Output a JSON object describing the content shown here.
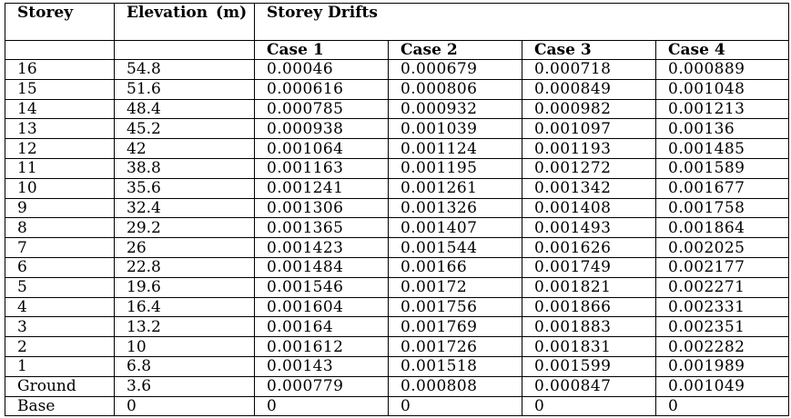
{
  "table": {
    "headers": {
      "storey": "Storey",
      "elevation": "Elevation (m)",
      "drifts_group": "Storey Drifts",
      "cases": [
        "Case 1",
        "Case 2",
        "Case 3",
        "Case 4"
      ]
    },
    "rows": [
      {
        "storey": "16",
        "elevation": "54.8",
        "case1": "0.00046",
        "case2": "0.000679",
        "case3": "0.000718",
        "case4": "0.000889"
      },
      {
        "storey": "15",
        "elevation": "51.6",
        "case1": "0.000616",
        "case2": "0.000806",
        "case3": "0.000849",
        "case4": "0.001048"
      },
      {
        "storey": "14",
        "elevation": "48.4",
        "case1": "0.000785",
        "case2": "0.000932",
        "case3": "0.000982",
        "case4": "0.001213"
      },
      {
        "storey": "13",
        "elevation": "45.2",
        "case1": "0.000938",
        "case2": "0.001039",
        "case3": "0.001097",
        "case4": "0.00136"
      },
      {
        "storey": "12",
        "elevation": "42",
        "case1": "0.001064",
        "case2": "0.001124",
        "case3": "0.001193",
        "case4": "0.001485"
      },
      {
        "storey": "11",
        "elevation": "38.8",
        "case1": "0.001163",
        "case2": "0.001195",
        "case3": "0.001272",
        "case4": "0.001589"
      },
      {
        "storey": "10",
        "elevation": "35.6",
        "case1": "0.001241",
        "case2": "0.001261",
        "case3": "0.001342",
        "case4": "0.001677"
      },
      {
        "storey": "9",
        "elevation": "32.4",
        "case1": "0.001306",
        "case2": "0.001326",
        "case3": "0.001408",
        "case4": "0.001758"
      },
      {
        "storey": "8",
        "elevation": "29.2",
        "case1": "0.001365",
        "case2": "0.001407",
        "case3": "0.001493",
        "case4": "0.001864"
      },
      {
        "storey": "7",
        "elevation": "26",
        "case1": "0.001423",
        "case2": "0.001544",
        "case3": "0.001626",
        "case4": "0.002025"
      },
      {
        "storey": "6",
        "elevation": "22.8",
        "case1": "0.001484",
        "case2": "0.00166",
        "case3": "0.001749",
        "case4": "0.002177"
      },
      {
        "storey": "5",
        "elevation": "19.6",
        "case1": "0.001546",
        "case2": "0.00172",
        "case3": "0.001821",
        "case4": "0.002271"
      },
      {
        "storey": "4",
        "elevation": "16.4",
        "case1": "0.001604",
        "case2": "0.001756",
        "case3": "0.001866",
        "case4": "0.002331"
      },
      {
        "storey": "3",
        "elevation": "13.2",
        "case1": "0.00164",
        "case2": "0.001769",
        "case3": "0.001883",
        "case4": "0.002351"
      },
      {
        "storey": "2",
        "elevation": "10",
        "case1": "0.001612",
        "case2": "0.001726",
        "case3": "0.001831",
        "case4": "0.002282"
      },
      {
        "storey": "1",
        "elevation": "6.8",
        "case1": "0.00143",
        "case2": "0.001518",
        "case3": "0.001599",
        "case4": "0.001989"
      },
      {
        "storey": "Ground",
        "elevation": "3.6",
        "case1": "0.000779",
        "case2": "0.000808",
        "case3": "0.000847",
        "case4": "0.001049"
      },
      {
        "storey": "Base",
        "elevation": "0",
        "case1": "0",
        "case2": "0",
        "case3": "0",
        "case4": "0"
      }
    ]
  }
}
